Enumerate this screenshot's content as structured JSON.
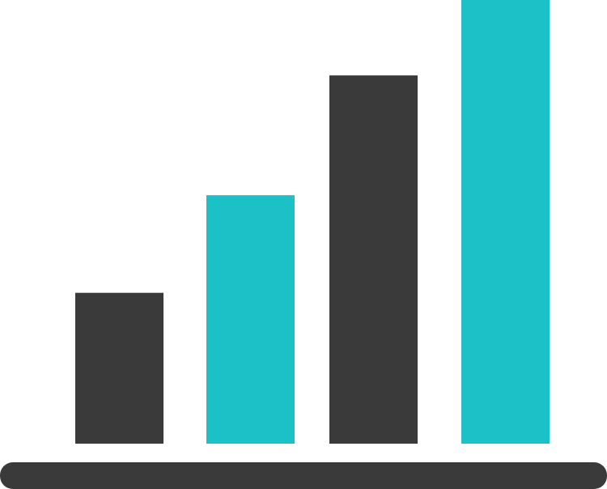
{
  "chart_data": {
    "type": "bar",
    "categories": [
      "",
      "",
      "",
      ""
    ],
    "values": [
      34,
      56,
      83,
      100
    ],
    "ylim": [
      0,
      100
    ],
    "grid": false,
    "legend": "none",
    "series": [
      {
        "values": [
          34,
          56,
          83,
          100
        ]
      }
    ],
    "colors": {
      "dark": "#3a3a3a",
      "teal": "#1cc0c7",
      "baseline": "#3a3a3a",
      "background": "#ffffff"
    },
    "bar_colors": [
      "#3a3a3a",
      "#1cc0c7",
      "#3a3a3a",
      "#1cc0c7"
    ]
  }
}
